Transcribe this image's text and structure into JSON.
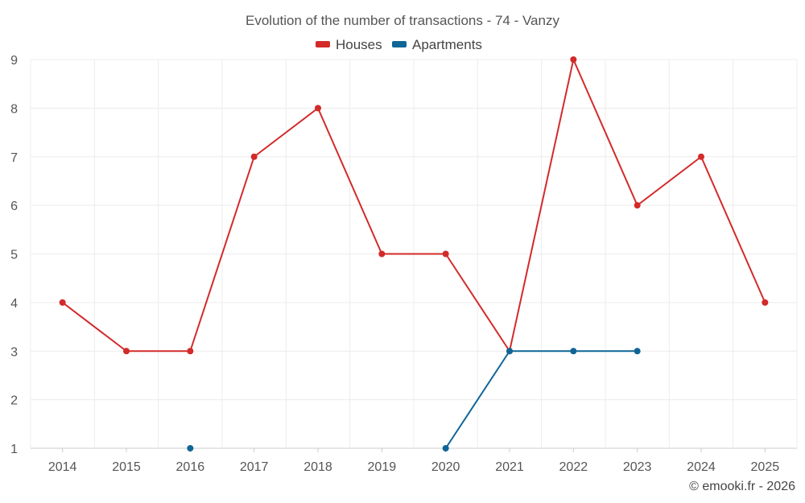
{
  "chart_data": {
    "type": "line",
    "title": "Evolution of the number of transactions - 74 - Vanzy",
    "categories": [
      "2014",
      "2015",
      "2016",
      "2017",
      "2018",
      "2019",
      "2020",
      "2021",
      "2022",
      "2023",
      "2024",
      "2025"
    ],
    "series": [
      {
        "name": "Houses",
        "color": "#d32a2a",
        "values": [
          4,
          3,
          3,
          7,
          8,
          5,
          5,
          3,
          9,
          6,
          7,
          4
        ]
      },
      {
        "name": "Apartments",
        "color": "#0f6596",
        "values": [
          null,
          null,
          1,
          null,
          null,
          null,
          1,
          3,
          3,
          3,
          null,
          null
        ]
      }
    ],
    "yticks": [
      "1",
      "2",
      "3",
      "4",
      "5",
      "6",
      "7",
      "8",
      "9"
    ],
    "ylim": [
      1,
      9
    ],
    "grid": true,
    "legend": "top-center",
    "xlabel": "",
    "ylabel": ""
  },
  "credit": "© emooki.fr - 2026"
}
